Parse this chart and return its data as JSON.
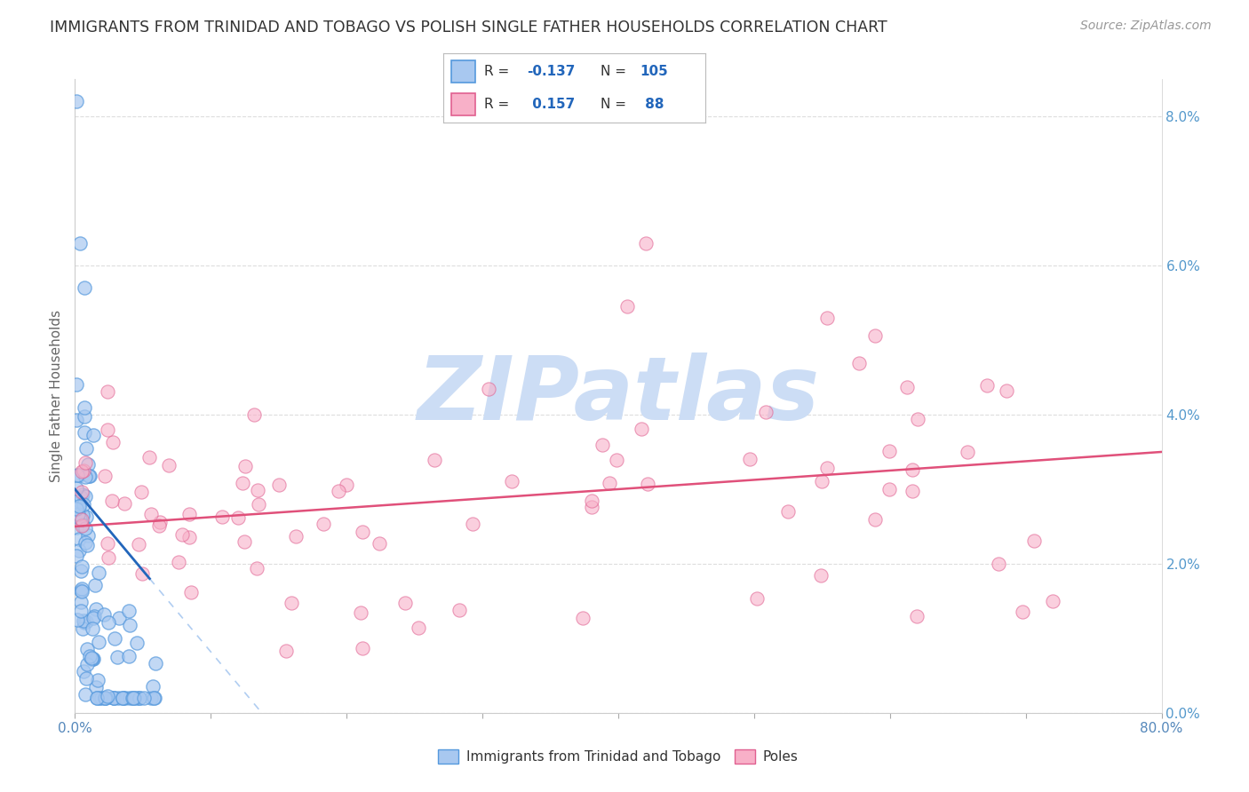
{
  "title": "IMMIGRANTS FROM TRINIDAD AND TOBAGO VS POLISH SINGLE FATHER HOUSEHOLDS CORRELATION CHART",
  "source": "Source: ZipAtlas.com",
  "ylabel": "Single Father Households",
  "xlim": [
    0.0,
    0.8
  ],
  "ylim": [
    0.0,
    0.085
  ],
  "legend_blue_R": -0.137,
  "legend_blue_N": 105,
  "legend_pink_R": 0.157,
  "legend_pink_N": 88,
  "blue_face_color": "#A8C8F0",
  "blue_edge_color": "#5599DD",
  "pink_face_color": "#F8B0C8",
  "pink_edge_color": "#E06090",
  "regression_blue_color": "#2266BB",
  "regression_pink_color": "#E0507A",
  "watermark_text": "ZIPatlas",
  "watermark_color": "#CCDDF5",
  "grid_color": "#DDDDDD",
  "right_tick_color": "#5599CC",
  "title_color": "#333333",
  "source_color": "#999999",
  "ylabel_color": "#666666"
}
